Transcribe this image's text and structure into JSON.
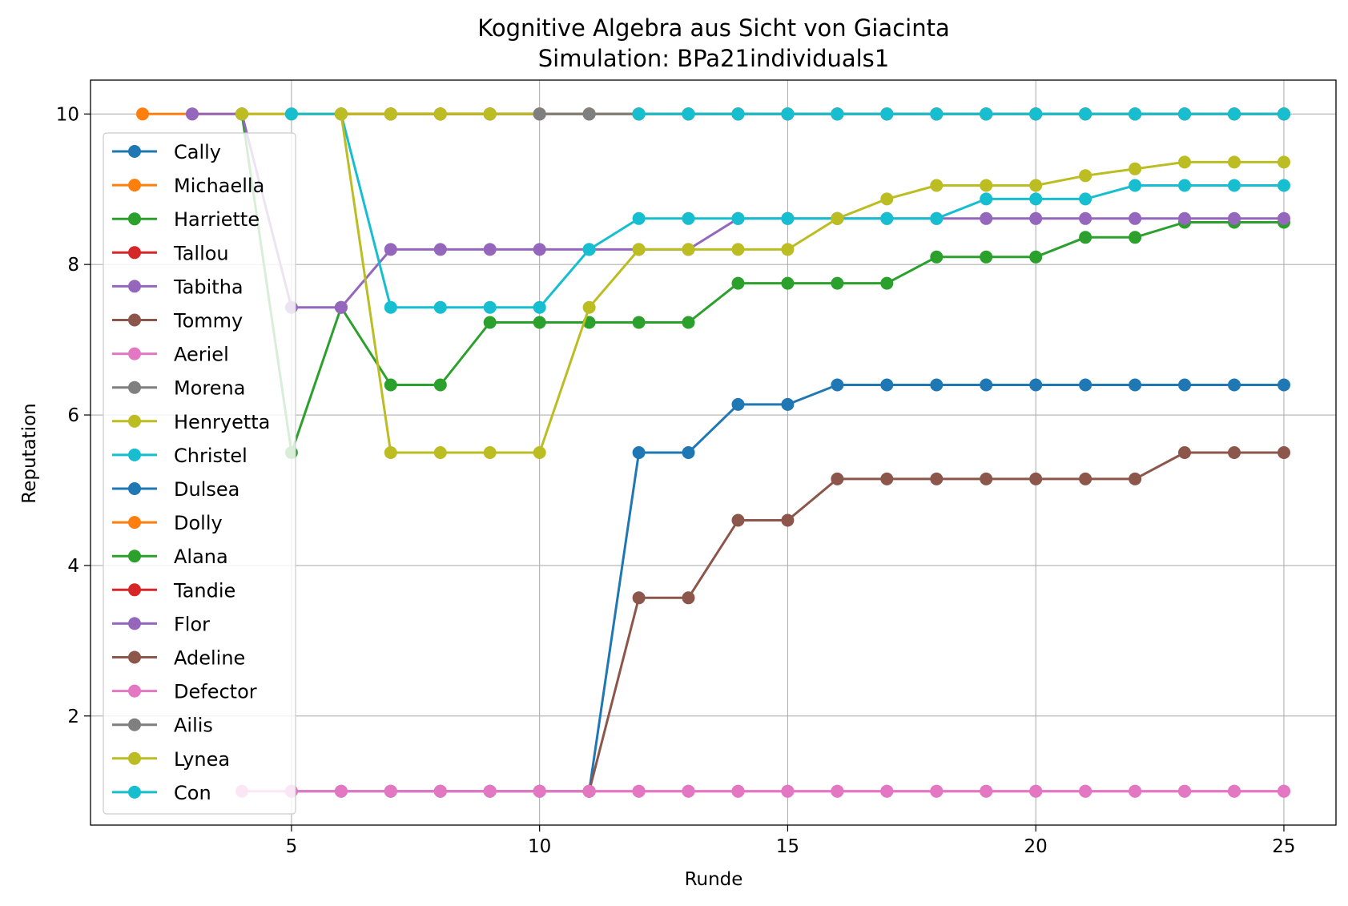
{
  "chart_data": {
    "type": "line",
    "title": "Kognitive Algebra aus Sicht von Giacinta",
    "subtitle": "Simulation: BPa21individuals1",
    "xlabel": "Runde",
    "ylabel": "Reputation",
    "xlim": [
      0.95,
      26.05
    ],
    "ylim": [
      0.55,
      10.45
    ],
    "xticks": [
      5,
      10,
      15,
      20,
      25
    ],
    "yticks": [
      2,
      4,
      6,
      8,
      10
    ],
    "grid": true,
    "legend_position": "left",
    "series": [
      {
        "name": "Cally",
        "color": "#1f77b4",
        "points": []
      },
      {
        "name": "Michaella",
        "color": "#ff7f0e",
        "points": [
          [
            2,
            10
          ],
          [
            3,
            10
          ],
          [
            4,
            10
          ],
          [
            5,
            10
          ],
          [
            6,
            10
          ],
          [
            7,
            10
          ],
          [
            8,
            10
          ],
          [
            9,
            10
          ],
          [
            10,
            10
          ],
          [
            11,
            10
          ],
          [
            12,
            10
          ],
          [
            13,
            10
          ],
          [
            14,
            10
          ],
          [
            15,
            10
          ],
          [
            16,
            10
          ],
          [
            17,
            10
          ],
          [
            18,
            10
          ],
          [
            19,
            10
          ],
          [
            20,
            10
          ],
          [
            21,
            10
          ],
          [
            22,
            10
          ],
          [
            23,
            10
          ],
          [
            24,
            10
          ],
          [
            25,
            10
          ]
        ]
      },
      {
        "name": "Harriette",
        "color": "#2ca02c",
        "points": [
          [
            4,
            10
          ],
          [
            5,
            5.5
          ],
          [
            6,
            7.43
          ],
          [
            7,
            6.4
          ],
          [
            8,
            6.4
          ],
          [
            9,
            7.23
          ],
          [
            10,
            7.23
          ],
          [
            11,
            7.23
          ],
          [
            12,
            7.23
          ],
          [
            13,
            7.23
          ],
          [
            14,
            7.75
          ],
          [
            15,
            7.75
          ],
          [
            16,
            7.75
          ],
          [
            17,
            7.75
          ],
          [
            18,
            8.1
          ],
          [
            19,
            8.1
          ],
          [
            20,
            8.1
          ],
          [
            21,
            8.36
          ],
          [
            22,
            8.36
          ],
          [
            23,
            8.56
          ],
          [
            24,
            8.56
          ],
          [
            25,
            8.56
          ]
        ]
      },
      {
        "name": "Tallou",
        "color": "#d62728",
        "points": [
          [
            6,
            10
          ],
          [
            7,
            10
          ],
          [
            8,
            10
          ],
          [
            9,
            10
          ],
          [
            10,
            10
          ],
          [
            11,
            10
          ],
          [
            12,
            10
          ],
          [
            13,
            10
          ],
          [
            14,
            10
          ],
          [
            15,
            10
          ],
          [
            16,
            10
          ],
          [
            17,
            10
          ],
          [
            18,
            10
          ],
          [
            19,
            10
          ],
          [
            20,
            10
          ],
          [
            21,
            10
          ],
          [
            22,
            10
          ],
          [
            23,
            10
          ],
          [
            24,
            10
          ],
          [
            25,
            10
          ]
        ]
      },
      {
        "name": "Tabitha",
        "color": "#9467bd",
        "points": [
          [
            3,
            10
          ],
          [
            4,
            10
          ],
          [
            5,
            7.43
          ],
          [
            6,
            7.43
          ],
          [
            7,
            8.2
          ],
          [
            8,
            8.2
          ],
          [
            9,
            8.2
          ],
          [
            10,
            8.2
          ],
          [
            11,
            8.2
          ],
          [
            12,
            8.2
          ],
          [
            13,
            8.2
          ],
          [
            14,
            8.61
          ],
          [
            15,
            8.61
          ],
          [
            16,
            8.61
          ],
          [
            17,
            8.61
          ],
          [
            18,
            8.61
          ],
          [
            19,
            8.61
          ],
          [
            20,
            8.61
          ],
          [
            21,
            8.61
          ],
          [
            22,
            8.61
          ],
          [
            23,
            8.61
          ],
          [
            24,
            8.61
          ],
          [
            25,
            8.61
          ]
        ]
      },
      {
        "name": "Tommy",
        "color": "#8c564b",
        "points": [
          [
            7,
            10
          ],
          [
            8,
            10
          ],
          [
            9,
            10
          ],
          [
            10,
            10
          ],
          [
            11,
            10
          ],
          [
            12,
            10
          ],
          [
            13,
            10
          ],
          [
            14,
            10
          ],
          [
            15,
            10
          ],
          [
            16,
            10
          ],
          [
            17,
            10
          ],
          [
            18,
            10
          ],
          [
            19,
            10
          ],
          [
            20,
            10
          ],
          [
            21,
            10
          ],
          [
            22,
            10
          ],
          [
            23,
            10
          ],
          [
            24,
            10
          ],
          [
            25,
            10
          ]
        ]
      },
      {
        "name": "Aeriel",
        "color": "#e377c2",
        "points": [
          [
            7,
            1
          ],
          [
            8,
            1
          ],
          [
            9,
            1
          ],
          [
            10,
            1
          ],
          [
            11,
            1
          ],
          [
            12,
            1
          ],
          [
            13,
            1
          ],
          [
            14,
            1
          ],
          [
            15,
            1
          ],
          [
            16,
            1
          ],
          [
            17,
            1
          ],
          [
            18,
            1
          ],
          [
            19,
            1
          ],
          [
            20,
            1
          ],
          [
            21,
            1
          ],
          [
            22,
            1
          ],
          [
            23,
            1
          ],
          [
            24,
            1
          ],
          [
            25,
            1
          ]
        ]
      },
      {
        "name": "Morena",
        "color": "#7f7f7f",
        "points": [
          [
            9,
            10
          ],
          [
            10,
            10
          ],
          [
            11,
            10
          ],
          [
            12,
            10
          ],
          [
            13,
            10
          ],
          [
            14,
            10
          ],
          [
            15,
            10
          ],
          [
            16,
            10
          ],
          [
            17,
            10
          ],
          [
            18,
            10
          ],
          [
            19,
            10
          ],
          [
            20,
            10
          ],
          [
            21,
            10
          ],
          [
            22,
            10
          ],
          [
            23,
            10
          ],
          [
            24,
            10
          ],
          [
            25,
            10
          ]
        ]
      },
      {
        "name": "Henryetta",
        "color": "#bcbd22",
        "points": [
          [
            4,
            10
          ],
          [
            5,
            10
          ],
          [
            6,
            10
          ],
          [
            7,
            10
          ],
          [
            8,
            10
          ],
          [
            9,
            10
          ],
          [
            10,
            10
          ],
          [
            11,
            10
          ],
          [
            12,
            10
          ],
          [
            13,
            10
          ],
          [
            14,
            10
          ],
          [
            15,
            10
          ],
          [
            16,
            10
          ],
          [
            17,
            10
          ],
          [
            18,
            10
          ],
          [
            19,
            10
          ],
          [
            20,
            10
          ],
          [
            21,
            10
          ],
          [
            22,
            10
          ],
          [
            23,
            10
          ],
          [
            24,
            10
          ],
          [
            25,
            10
          ]
        ]
      },
      {
        "name": "Christel",
        "color": "#17becf",
        "points": [
          [
            5,
            10
          ],
          [
            6,
            10
          ],
          [
            7,
            7.43
          ],
          [
            8,
            7.43
          ],
          [
            9,
            7.43
          ],
          [
            10,
            7.43
          ],
          [
            11,
            8.2
          ],
          [
            12,
            8.61
          ],
          [
            13,
            8.61
          ],
          [
            14,
            8.61
          ],
          [
            15,
            8.61
          ],
          [
            16,
            8.61
          ],
          [
            17,
            8.61
          ],
          [
            18,
            8.61
          ],
          [
            19,
            8.87
          ],
          [
            20,
            8.87
          ],
          [
            21,
            8.87
          ],
          [
            22,
            9.05
          ],
          [
            23,
            9.05
          ],
          [
            24,
            9.05
          ],
          [
            25,
            9.05
          ]
        ]
      },
      {
        "name": "Dulsea",
        "color": "#1f77b4",
        "points": [
          [
            5,
            1
          ],
          [
            6,
            1
          ],
          [
            7,
            1
          ],
          [
            8,
            1
          ],
          [
            9,
            1
          ],
          [
            10,
            1
          ],
          [
            11,
            1
          ],
          [
            12,
            5.5
          ],
          [
            13,
            5.5
          ],
          [
            14,
            6.14
          ],
          [
            15,
            6.14
          ],
          [
            16,
            6.4
          ],
          [
            17,
            6.4
          ],
          [
            18,
            6.4
          ],
          [
            19,
            6.4
          ],
          [
            20,
            6.4
          ],
          [
            21,
            6.4
          ],
          [
            22,
            6.4
          ],
          [
            23,
            6.4
          ],
          [
            24,
            6.4
          ],
          [
            25,
            6.4
          ]
        ]
      },
      {
        "name": "Dolly",
        "color": "#ff7f0e",
        "points": []
      },
      {
        "name": "Alana",
        "color": "#2ca02c",
        "points": []
      },
      {
        "name": "Tandie",
        "color": "#d62728",
        "points": []
      },
      {
        "name": "Flor",
        "color": "#9467bd",
        "points": []
      },
      {
        "name": "Adeline",
        "color": "#8c564b",
        "points": [
          [
            11,
            1
          ],
          [
            12,
            3.57
          ],
          [
            13,
            3.57
          ],
          [
            14,
            4.6
          ],
          [
            15,
            4.6
          ],
          [
            16,
            5.15
          ],
          [
            17,
            5.15
          ],
          [
            18,
            5.15
          ],
          [
            19,
            5.15
          ],
          [
            20,
            5.15
          ],
          [
            21,
            5.15
          ],
          [
            22,
            5.15
          ],
          [
            23,
            5.5
          ],
          [
            24,
            5.5
          ],
          [
            25,
            5.5
          ]
        ]
      },
      {
        "name": "Defector",
        "color": "#e377c2",
        "points": [
          [
            4,
            1
          ],
          [
            5,
            1
          ],
          [
            6,
            1
          ],
          [
            7,
            1
          ],
          [
            8,
            1
          ],
          [
            9,
            1
          ],
          [
            10,
            1
          ],
          [
            11,
            1
          ],
          [
            12,
            1
          ],
          [
            13,
            1
          ],
          [
            14,
            1
          ],
          [
            15,
            1
          ],
          [
            16,
            1
          ],
          [
            17,
            1
          ],
          [
            18,
            1
          ],
          [
            19,
            1
          ],
          [
            20,
            1
          ],
          [
            21,
            1
          ],
          [
            22,
            1
          ],
          [
            23,
            1
          ],
          [
            24,
            1
          ],
          [
            25,
            1
          ]
        ]
      },
      {
        "name": "Ailis",
        "color": "#7f7f7f",
        "points": [
          [
            10,
            10
          ],
          [
            11,
            10
          ],
          [
            12,
            10
          ],
          [
            13,
            10
          ],
          [
            14,
            10
          ],
          [
            15,
            10
          ],
          [
            16,
            10
          ],
          [
            17,
            10
          ],
          [
            18,
            10
          ],
          [
            19,
            10
          ],
          [
            20,
            10
          ],
          [
            21,
            10
          ],
          [
            22,
            10
          ],
          [
            23,
            10
          ],
          [
            24,
            10
          ],
          [
            25,
            10
          ]
        ]
      },
      {
        "name": "Lynea",
        "color": "#bcbd22",
        "points": [
          [
            6,
            10
          ],
          [
            7,
            5.5
          ],
          [
            8,
            5.5
          ],
          [
            9,
            5.5
          ],
          [
            10,
            5.5
          ],
          [
            11,
            7.43
          ],
          [
            12,
            8.2
          ],
          [
            13,
            8.2
          ],
          [
            14,
            8.2
          ],
          [
            15,
            8.2
          ],
          [
            16,
            8.61
          ],
          [
            17,
            8.87
          ],
          [
            18,
            9.05
          ],
          [
            19,
            9.05
          ],
          [
            20,
            9.05
          ],
          [
            21,
            9.18
          ],
          [
            22,
            9.27
          ],
          [
            23,
            9.36
          ],
          [
            24,
            9.36
          ],
          [
            25,
            9.36
          ]
        ]
      },
      {
        "name": "Con",
        "color": "#17becf",
        "points": [
          [
            12,
            10
          ],
          [
            13,
            10
          ],
          [
            14,
            10
          ],
          [
            15,
            10
          ],
          [
            16,
            10
          ],
          [
            17,
            10
          ],
          [
            18,
            10
          ],
          [
            19,
            10
          ],
          [
            20,
            10
          ],
          [
            21,
            10
          ],
          [
            22,
            10
          ],
          [
            23,
            10
          ],
          [
            24,
            10
          ],
          [
            25,
            10
          ]
        ]
      }
    ]
  }
}
